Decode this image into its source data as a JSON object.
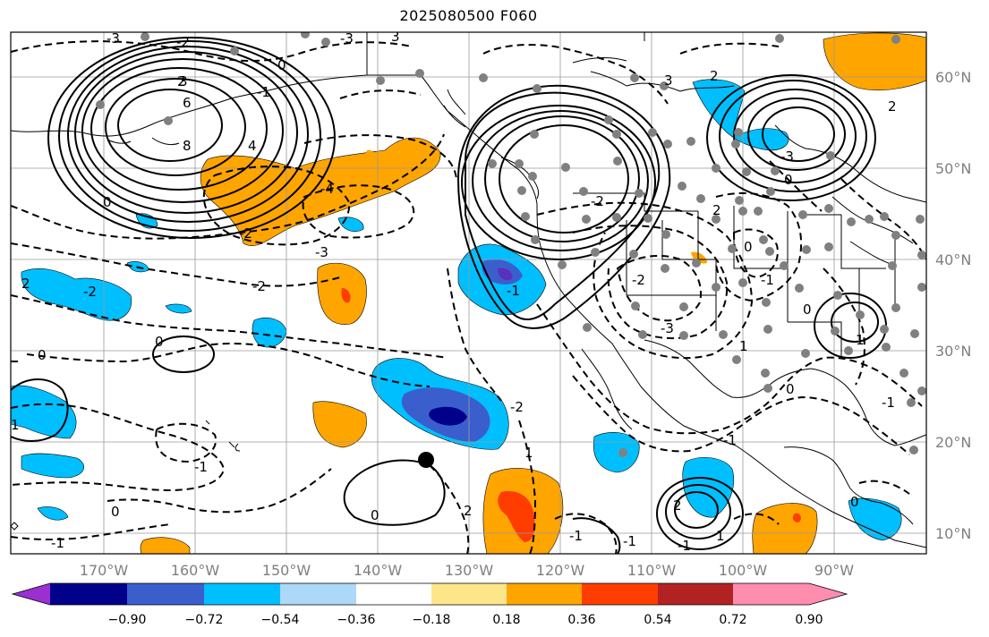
{
  "title": "2025080500 F060",
  "map": {
    "longitude_labels": [
      "170°W",
      "160°W",
      "150°W",
      "140°W",
      "130°W",
      "120°W",
      "110°W",
      "100°W",
      "90°W"
    ],
    "latitude_labels": [
      "60°N",
      "50°N",
      "40°N",
      "30°N",
      "20°N",
      "10°N"
    ]
  },
  "contour_labels": [
    "-3",
    "-2",
    "-1",
    "0",
    "0",
    "2",
    "3",
    "4",
    "6",
    "8",
    "-4",
    "-3",
    "-2",
    "-3",
    "-2",
    "-1",
    "0",
    "0",
    "-1",
    "0",
    "1",
    "2",
    "3",
    "-2",
    "-3",
    "-2",
    "-1",
    "0",
    "-1",
    "-1",
    "0",
    "1",
    "2",
    "3",
    "-2",
    "2",
    "1",
    "2",
    "-1",
    "0",
    "-1",
    "-2",
    "-3",
    "0",
    "0",
    "-1",
    "0",
    "1",
    "2",
    "1",
    "2",
    "-1"
  ],
  "colorbar": {
    "ticks": [
      "−0.90",
      "−0.72",
      "−0.54",
      "−0.36",
      "−0.18",
      "0.18",
      "0.36",
      "0.54",
      "0.72",
      "0.90"
    ],
    "colors": [
      "#9b30d0",
      "#00008b",
      "#3a5fcd",
      "#00bfff",
      "#add8f7",
      "#ffffff",
      "#fde68a",
      "#ffa500",
      "#ff3d00",
      "#b22222",
      "#ff8db0"
    ]
  }
}
